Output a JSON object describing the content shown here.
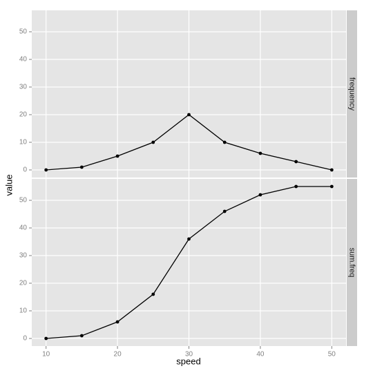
{
  "chart_data": {
    "type": "line",
    "x_label": "speed",
    "y_label": "value",
    "x": [
      10,
      15,
      20,
      25,
      30,
      35,
      40,
      45,
      50
    ],
    "series": [
      {
        "name": "frequency",
        "color": "#000000",
        "values": [
          0,
          1,
          5,
          10,
          20,
          10,
          6,
          3,
          0
        ]
      },
      {
        "name": "sum.freq",
        "color": "#000000",
        "values": [
          0,
          1,
          6,
          16,
          36,
          46,
          52,
          55,
          55
        ]
      }
    ],
    "xlim": [
      8,
      52
    ],
    "xticks": [
      10,
      20,
      30,
      40,
      50
    ],
    "ylim": [
      -2.75,
      57.75
    ],
    "yticks": [
      0,
      10,
      20,
      30,
      40,
      50
    ],
    "grid": true
  }
}
